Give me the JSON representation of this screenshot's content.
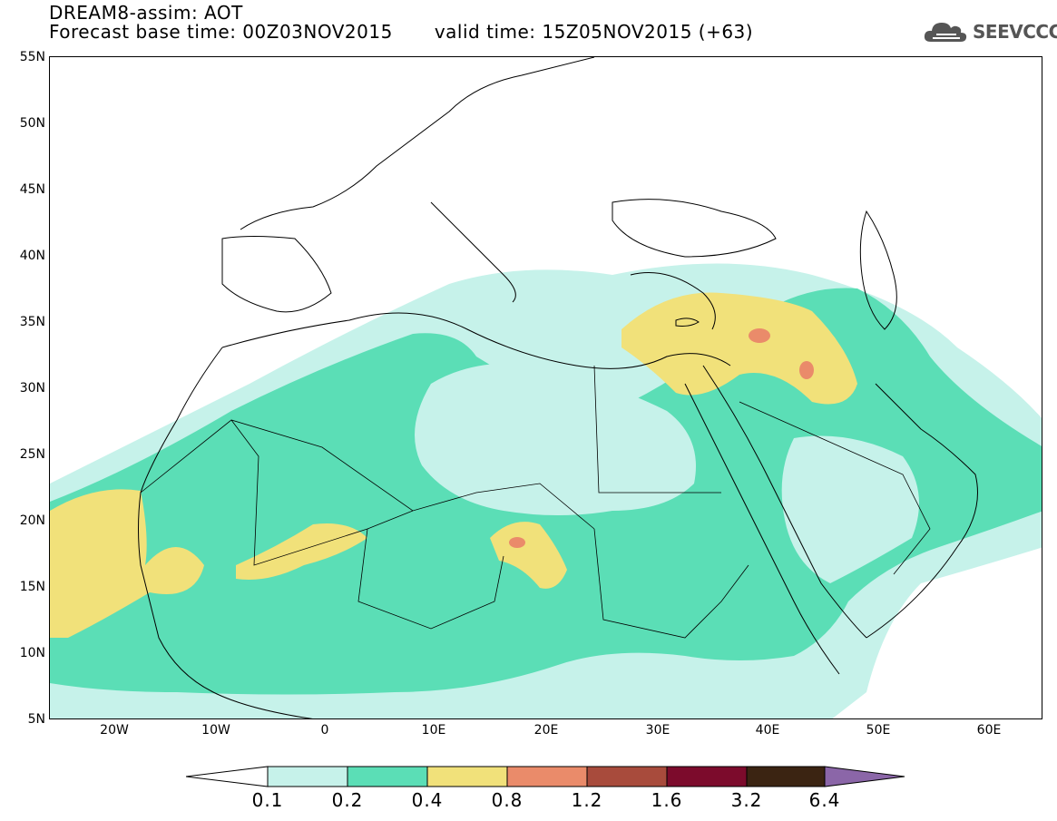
{
  "header": {
    "title": "DREAM8-assim: AOT",
    "base_time": "Forecast base time: 00Z03NOV2015",
    "valid_time": "valid time: 15Z05NOV2015 (+63)"
  },
  "logo": {
    "text": "SEEVCCC",
    "icon": "cloud-icon"
  },
  "map": {
    "lat_labels": [
      "55N",
      "50N",
      "45N",
      "40N",
      "35N",
      "30N",
      "25N",
      "20N",
      "15N",
      "10N",
      "5N"
    ],
    "lon_labels": [
      "20W",
      "10W",
      "0",
      "10E",
      "20E",
      "30E",
      "40E",
      "50E",
      "60E"
    ],
    "variable": "AOT"
  },
  "colorbar": {
    "labels": [
      "0.1",
      "0.2",
      "0.4",
      "0.8",
      "1.2",
      "1.6",
      "3.2",
      "6.4"
    ],
    "colors": [
      "#ffffff",
      "#c6f2ea",
      "#5bdeb6",
      "#f1e17a",
      "#ea8b6a",
      "#a84b3c",
      "#7c0b2c",
      "#3b2412",
      "#8b66a8"
    ]
  }
}
